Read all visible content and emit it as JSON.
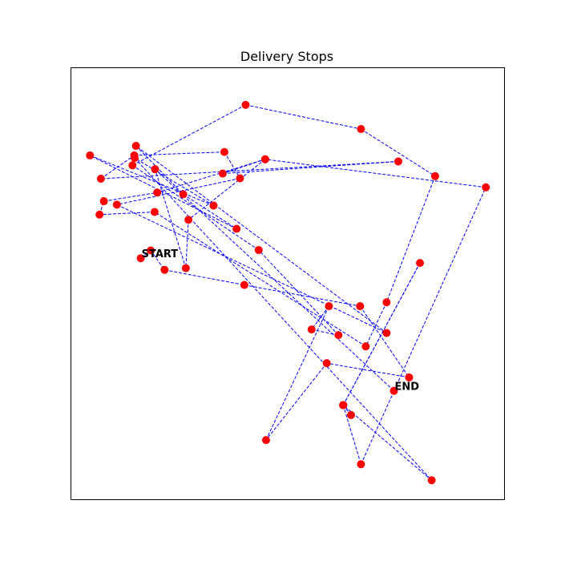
{
  "chart_data": {
    "type": "scatter",
    "title": "Delivery Stops",
    "xlabel": "",
    "ylabel": "",
    "xlim": [
      0,
      100
    ],
    "ylim": [
      0,
      100
    ],
    "grid": false,
    "axis_ticks": false,
    "line_color": "#0000ff",
    "line_style": "dashed",
    "marker_color": "#ff0000",
    "points": [
      [
        16.1,
        55.9
      ],
      [
        18.4,
        57.7
      ],
      [
        21.6,
        53.2
      ],
      [
        40.0,
        49.7
      ],
      [
        66.7,
        44.8
      ],
      [
        78.0,
        28.3
      ],
      [
        59.0,
        31.6
      ],
      [
        45.0,
        13.8
      ],
      [
        59.5,
        44.8
      ],
      [
        55.5,
        39.4
      ],
      [
        61.7,
        38.1
      ],
      [
        43.3,
        57.8
      ],
      [
        14.2,
        77.4
      ],
      [
        40.3,
        91.4
      ],
      [
        66.9,
        85.8
      ],
      [
        84.0,
        74.9
      ],
      [
        72.8,
        45.7
      ],
      [
        68.0,
        35.5
      ],
      [
        19.3,
        66.6
      ],
      [
        6.6,
        66.0
      ],
      [
        7.6,
        69.1
      ],
      [
        19.9,
        71.1
      ],
      [
        44.8,
        78.8
      ],
      [
        35.0,
        75.5
      ],
      [
        75.5,
        78.3
      ],
      [
        6.9,
        74.3
      ],
      [
        14.6,
        79.7
      ],
      [
        35.4,
        80.5
      ],
      [
        39.0,
        74.4
      ],
      [
        10.6,
        68.3
      ],
      [
        72.8,
        38.6
      ],
      [
        15.0,
        81.9
      ],
      [
        25.9,
        70.7
      ],
      [
        38.2,
        62.7
      ],
      [
        4.4,
        79.7
      ],
      [
        32.9,
        68.1
      ],
      [
        14.7,
        79.1
      ],
      [
        83.2,
        4.5
      ],
      [
        62.8,
        21.9
      ],
      [
        64.6,
        19.6
      ],
      [
        62.8,
        21.9
      ],
      [
        80.5,
        54.8
      ],
      [
        62.8,
        21.9
      ],
      [
        66.9,
        8.2
      ],
      [
        95.7,
        72.3
      ],
      [
        44.8,
        78.8
      ],
      [
        27.1,
        64.8
      ],
      [
        26.5,
        53.6
      ],
      [
        19.4,
        76.5
      ],
      [
        74.5,
        25.2
      ]
    ],
    "annotations": [
      {
        "text": "START",
        "point_index": 0
      },
      {
        "text": "END",
        "point_index": 49
      }
    ]
  }
}
